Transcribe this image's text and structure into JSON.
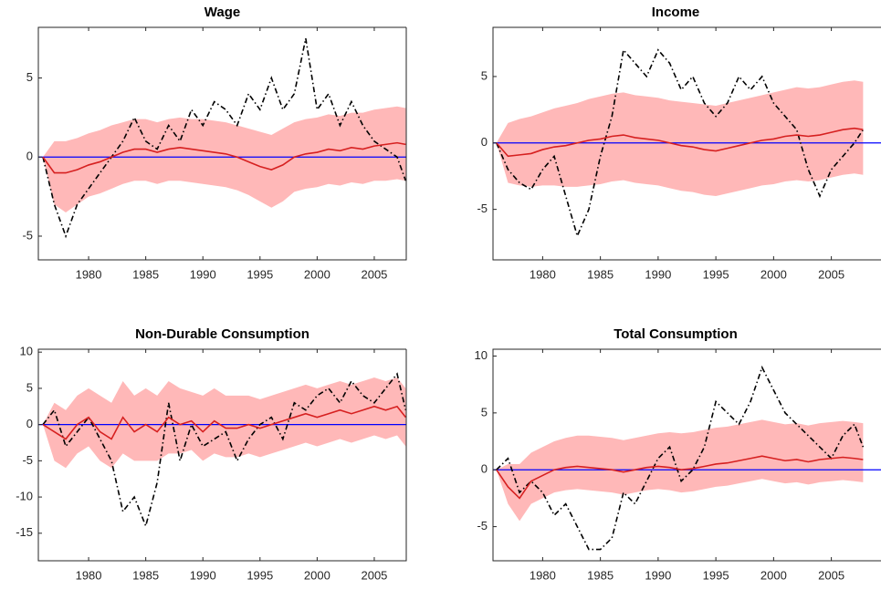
{
  "chart_data": [
    {
      "type": "line",
      "title": "Wage",
      "x": [
        1976,
        1977,
        1978,
        1979,
        1980,
        1981,
        1982,
        1983,
        1984,
        1985,
        1986,
        1987,
        1988,
        1989,
        1990,
        1991,
        1992,
        1993,
        1994,
        1995,
        1996,
        1997,
        1998,
        1999,
        2000,
        2001,
        2002,
        2003,
        2004,
        2005,
        2006,
        2007,
        2007.75
      ],
      "xlim": [
        1975.6,
        2007.8
      ],
      "xticks": [
        1980,
        1985,
        1990,
        1995,
        2000,
        2005
      ],
      "ylim": [
        -6.5,
        8.2
      ],
      "yticks": [
        -5,
        0,
        5
      ],
      "band": {
        "color": "#ffb8b8",
        "lower": [
          0,
          -3,
          -3.5,
          -3,
          -2.5,
          -2.3,
          -2,
          -1.7,
          -1.5,
          -1.5,
          -1.7,
          -1.5,
          -1.5,
          -1.6,
          -1.7,
          -1.8,
          -1.9,
          -2.1,
          -2.4,
          -2.8,
          -3.2,
          -2.8,
          -2.2,
          -2,
          -1.9,
          -1.7,
          -1.8,
          -1.6,
          -1.7,
          -1.5,
          -1.5,
          -1.4,
          -1.5
        ],
        "upper": [
          0,
          1,
          1,
          1.2,
          1.5,
          1.7,
          2,
          2.2,
          2.4,
          2.4,
          2.2,
          2.4,
          2.5,
          2.4,
          2.4,
          2.3,
          2.2,
          2,
          1.8,
          1.6,
          1.4,
          1.8,
          2.2,
          2.4,
          2.5,
          2.7,
          2.6,
          2.8,
          2.8,
          3,
          3.1,
          3.2,
          3.1
        ]
      },
      "series": [
        {
          "color": "#000000",
          "style": "dash-dot",
          "values": [
            0,
            -3,
            -5,
            -3,
            -2,
            -1,
            0,
            1,
            2.5,
            1,
            0.5,
            2,
            1,
            3,
            2,
            3.5,
            3,
            2,
            4,
            3,
            5,
            3,
            4,
            7.5,
            3,
            4,
            2,
            3.5,
            2,
            1,
            0.5,
            0,
            -1.5
          ]
        },
        {
          "color": "#d62020",
          "style": "solid",
          "values": [
            0,
            -1,
            -1,
            -0.8,
            -0.5,
            -0.3,
            0,
            0.3,
            0.5,
            0.5,
            0.3,
            0.5,
            0.6,
            0.5,
            0.4,
            0.3,
            0.2,
            0,
            -0.3,
            -0.6,
            -0.8,
            -0.5,
            0,
            0.2,
            0.3,
            0.5,
            0.4,
            0.6,
            0.5,
            0.7,
            0.8,
            0.9,
            0.8
          ]
        }
      ],
      "hline": {
        "value": 0,
        "color": "#0000ff"
      }
    },
    {
      "type": "line",
      "title": "Income",
      "x": [
        1976,
        1977,
        1978,
        1979,
        1980,
        1981,
        1982,
        1983,
        1984,
        1985,
        1986,
        1987,
        1988,
        1989,
        1990,
        1991,
        1992,
        1993,
        1994,
        1995,
        1996,
        1997,
        1998,
        1999,
        2000,
        2001,
        2002,
        2003,
        2004,
        2005,
        2006,
        2007,
        2007.75
      ],
      "xlim": [
        1975.7,
        2009.3
      ],
      "xticks": [
        1980,
        1985,
        1990,
        1995,
        2000,
        2005
      ],
      "ylim": [
        -8.8,
        8.7
      ],
      "yticks": [
        -5,
        0,
        5
      ],
      "band": {
        "color": "#ffb8b8",
        "lower": [
          0,
          -3,
          -3.2,
          -3.3,
          -3.2,
          -3.2,
          -3.3,
          -3.3,
          -3.2,
          -3.1,
          -2.9,
          -2.8,
          -3,
          -3.1,
          -3.2,
          -3.4,
          -3.6,
          -3.7,
          -3.9,
          -4,
          -3.8,
          -3.6,
          -3.4,
          -3.2,
          -3.1,
          -2.9,
          -2.8,
          -2.9,
          -2.8,
          -2.6,
          -2.4,
          -2.3,
          -2.4
        ],
        "upper": [
          0,
          1.5,
          1.8,
          2,
          2.3,
          2.6,
          2.8,
          3,
          3.3,
          3.5,
          3.7,
          3.8,
          3.6,
          3.5,
          3.4,
          3.2,
          3.1,
          3,
          2.9,
          2.8,
          3,
          3.2,
          3.4,
          3.6,
          3.8,
          4,
          4.2,
          4.1,
          4.2,
          4.4,
          4.6,
          4.7,
          4.6
        ]
      },
      "series": [
        {
          "color": "#000000",
          "style": "dash-dot",
          "values": [
            0,
            -2,
            -3,
            -3.5,
            -2,
            -1,
            -4,
            -7,
            -5,
            -1,
            2,
            7,
            6,
            5,
            7,
            6,
            4,
            5,
            3,
            2,
            3,
            5,
            4,
            5,
            3,
            2,
            1,
            -2,
            -4,
            -2,
            -1,
            0,
            1
          ]
        },
        {
          "color": "#d62020",
          "style": "solid",
          "values": [
            0,
            -1,
            -0.9,
            -0.8,
            -0.5,
            -0.3,
            -0.2,
            0,
            0.2,
            0.3,
            0.5,
            0.6,
            0.4,
            0.3,
            0.2,
            0,
            -0.2,
            -0.3,
            -0.5,
            -0.6,
            -0.4,
            -0.2,
            0,
            0.2,
            0.3,
            0.5,
            0.6,
            0.5,
            0.6,
            0.8,
            1,
            1.1,
            1
          ]
        }
      ],
      "hline": {
        "value": 0,
        "color": "#0000ff"
      }
    },
    {
      "type": "line",
      "title": "Non-Durable Consumption",
      "x": [
        1976,
        1977,
        1978,
        1979,
        1980,
        1981,
        1982,
        1983,
        1984,
        1985,
        1986,
        1987,
        1988,
        1989,
        1990,
        1991,
        1992,
        1993,
        1994,
        1995,
        1996,
        1997,
        1998,
        1999,
        2000,
        2001,
        2002,
        2003,
        2004,
        2005,
        2006,
        2007,
        2007.75
      ],
      "xlim": [
        1975.6,
        2007.8
      ],
      "xticks": [
        1980,
        1985,
        1990,
        1995,
        2000,
        2005
      ],
      "ylim": [
        -18.8,
        10.4
      ],
      "yticks": [
        -15,
        -10,
        -5,
        0,
        5,
        10
      ],
      "band": {
        "color": "#ffb8b8",
        "lower": [
          0,
          -5,
          -6,
          -4,
          -3,
          -5,
          -6,
          -4,
          -5,
          -5,
          -5,
          -4,
          -4,
          -3.5,
          -5,
          -4,
          -4.5,
          -4.5,
          -4,
          -4.5,
          -4,
          -3.5,
          -3,
          -2.5,
          -3,
          -2.5,
          -2,
          -2.5,
          -2,
          -1.5,
          -2,
          -1.5,
          -3
        ],
        "upper": [
          0,
          3,
          2,
          4,
          5,
          4,
          3,
          6,
          4,
          5,
          4,
          6,
          5,
          4.5,
          4,
          5,
          4,
          4,
          4,
          3.5,
          4,
          4.5,
          5,
          5.5,
          5,
          5.5,
          6,
          5.5,
          6,
          6.5,
          6,
          6.5,
          5
        ]
      },
      "series": [
        {
          "color": "#000000",
          "style": "dash-dot",
          "values": [
            0,
            2,
            -3,
            -1,
            1,
            -2,
            -5,
            -12,
            -10,
            -14,
            -8,
            3,
            -5,
            0,
            -3,
            -2,
            -1,
            -5,
            -2,
            0,
            1,
            -2,
            3,
            2,
            4,
            5,
            3,
            6,
            4,
            3,
            5,
            7,
            2
          ]
        },
        {
          "color": "#d62020",
          "style": "solid",
          "values": [
            0,
            -1,
            -2,
            0,
            1,
            -1,
            -2,
            1,
            -1,
            0,
            -1,
            1,
            0,
            0.5,
            -1,
            0.5,
            -0.5,
            -0.5,
            0,
            -0.5,
            0,
            0.5,
            1,
            1.5,
            1,
            1.5,
            2,
            1.5,
            2,
            2.5,
            2,
            2.5,
            1
          ]
        }
      ],
      "hline": {
        "value": 0,
        "color": "#0000ff"
      }
    },
    {
      "type": "line",
      "title": "Total Consumption",
      "x": [
        1976,
        1977,
        1978,
        1979,
        1980,
        1981,
        1982,
        1983,
        1984,
        1985,
        1986,
        1987,
        1988,
        1989,
        1990,
        1991,
        1992,
        1993,
        1994,
        1995,
        1996,
        1997,
        1998,
        1999,
        2000,
        2001,
        2002,
        2003,
        2004,
        2005,
        2006,
        2007,
        2007.75
      ],
      "xlim": [
        1975.7,
        2009.3
      ],
      "xticks": [
        1980,
        1985,
        1990,
        1995,
        2000,
        2005
      ],
      "ylim": [
        -8,
        10.6
      ],
      "yticks": [
        -5,
        0,
        5,
        10
      ],
      "band": {
        "color": "#ffb8b8",
        "lower": [
          0,
          -3,
          -4.5,
          -3,
          -2.5,
          -2,
          -1.8,
          -1.7,
          -1.8,
          -1.9,
          -2,
          -2.2,
          -2,
          -1.8,
          -1.7,
          -1.8,
          -2,
          -1.9,
          -1.7,
          -1.5,
          -1.4,
          -1.2,
          -1,
          -0.8,
          -1,
          -1.2,
          -1.1,
          -1.3,
          -1.1,
          -1,
          -0.9,
          -1,
          -1.1
        ],
        "upper": [
          0,
          0.5,
          0.5,
          1.5,
          2,
          2.5,
          2.8,
          3,
          3,
          2.9,
          2.8,
          2.6,
          2.8,
          3,
          3.2,
          3.3,
          3.2,
          3.3,
          3.5,
          3.7,
          3.8,
          4,
          4.2,
          4.4,
          4.2,
          4,
          4.1,
          3.9,
          4.1,
          4.2,
          4.3,
          4.2,
          4.1
        ]
      },
      "series": [
        {
          "color": "#000000",
          "style": "dash-dot",
          "values": [
            0,
            1,
            -2,
            -1,
            -2,
            -4,
            -3,
            -5,
            -7,
            -7,
            -6,
            -2,
            -3,
            -1,
            1,
            2,
            -1,
            0,
            2,
            6,
            5,
            4,
            6,
            9,
            7,
            5,
            4,
            3,
            2,
            1,
            3,
            4,
            2
          ]
        },
        {
          "color": "#d62020",
          "style": "solid",
          "values": [
            0,
            -1.5,
            -2.5,
            -1,
            -0.5,
            0,
            0.2,
            0.3,
            0.2,
            0.1,
            0,
            -0.2,
            0,
            0.2,
            0.3,
            0.2,
            0,
            0.1,
            0.3,
            0.5,
            0.6,
            0.8,
            1,
            1.2,
            1,
            0.8,
            0.9,
            0.7,
            0.9,
            1,
            1.1,
            1,
            0.9
          ]
        }
      ],
      "hline": {
        "value": 0,
        "color": "#0000ff"
      }
    }
  ]
}
